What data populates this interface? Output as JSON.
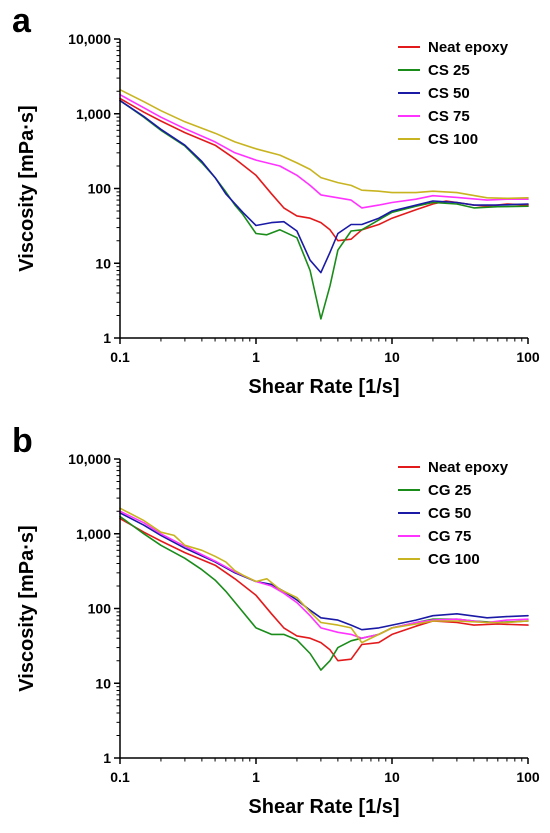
{
  "figure": {
    "panels": [
      {
        "letter": "a"
      },
      {
        "letter": "b"
      }
    ]
  },
  "chart_data": [
    {
      "type": "line",
      "panel": "a",
      "xlabel": "Shear Rate [1/s]",
      "ylabel": "Viscosity [mPa·s]",
      "xscale": "log",
      "yscale": "log",
      "xlim": [
        0.1,
        100
      ],
      "ylim": [
        1,
        10000
      ],
      "x_tick_labels": [
        "0.1",
        "1",
        "10",
        "100"
      ],
      "y_tick_labels": [
        "1",
        "10",
        "100",
        "1,000",
        "10,000"
      ],
      "grid": false,
      "legend_position": "top-right",
      "series": [
        {
          "name": "Neat epoxy",
          "color": "#e31a1c",
          "x": [
            0.1,
            0.15,
            0.2,
            0.3,
            0.5,
            0.7,
            1,
            1.3,
            1.6,
            2,
            2.5,
            3,
            3.5,
            4,
            5,
            6,
            8,
            10,
            15,
            20,
            25,
            30,
            40,
            50,
            70,
            100
          ],
          "y": [
            1600,
            1050,
            800,
            560,
            380,
            250,
            150,
            85,
            55,
            43,
            40,
            35,
            28,
            20,
            21,
            28,
            33,
            40,
            52,
            62,
            68,
            65,
            60,
            58,
            62,
            60
          ]
        },
        {
          "name": "CS 25",
          "color": "#1a8c1a",
          "x": [
            0.1,
            0.15,
            0.2,
            0.3,
            0.4,
            0.5,
            0.6,
            0.7,
            0.8,
            1,
            1.2,
            1.5,
            2,
            2.5,
            3,
            3.5,
            4,
            5,
            6,
            8,
            10,
            15,
            20,
            30,
            40,
            60,
            100
          ],
          "y": [
            1500,
            900,
            600,
            370,
            220,
            140,
            90,
            60,
            45,
            25,
            24,
            28,
            22,
            8,
            1.8,
            5,
            15,
            27,
            28,
            38,
            48,
            58,
            65,
            62,
            55,
            57,
            58
          ]
        },
        {
          "name": "CS 50",
          "color": "#1a1aa6",
          "x": [
            0.1,
            0.15,
            0.2,
            0.3,
            0.4,
            0.5,
            0.6,
            0.8,
            1,
            1.3,
            1.6,
            2,
            2.5,
            3,
            3.5,
            4,
            5,
            6,
            8,
            10,
            15,
            20,
            30,
            40,
            60,
            100
          ],
          "y": [
            1500,
            920,
            620,
            380,
            230,
            140,
            85,
            48,
            32,
            35,
            36,
            27,
            11,
            7.5,
            14,
            25,
            33,
            33,
            40,
            50,
            60,
            68,
            65,
            60,
            60,
            62
          ]
        },
        {
          "name": "CS 75",
          "color": "#ff33ff",
          "x": [
            0.1,
            0.15,
            0.2,
            0.3,
            0.5,
            0.7,
            1,
            1.5,
            2,
            2.5,
            3,
            4,
            5,
            6,
            8,
            10,
            15,
            20,
            30,
            50,
            70,
            100
          ],
          "y": [
            1800,
            1200,
            900,
            630,
            420,
            300,
            240,
            200,
            150,
            110,
            82,
            75,
            70,
            55,
            60,
            65,
            72,
            80,
            76,
            70,
            72,
            72
          ]
        },
        {
          "name": "CS 100",
          "color": "#c8b420",
          "x": [
            0.1,
            0.15,
            0.2,
            0.3,
            0.5,
            0.7,
            1,
            1.5,
            2,
            2.5,
            3,
            4,
            5,
            6,
            8,
            10,
            15,
            20,
            30,
            50,
            70,
            100
          ],
          "y": [
            2100,
            1450,
            1100,
            780,
            550,
            420,
            340,
            280,
            220,
            180,
            140,
            120,
            110,
            95,
            92,
            88,
            88,
            92,
            88,
            75,
            74,
            75
          ]
        }
      ]
    },
    {
      "type": "line",
      "panel": "b",
      "xlabel": "Shear Rate [1/s]",
      "ylabel": "Viscosity [mPa·s]",
      "xscale": "log",
      "yscale": "log",
      "xlim": [
        0.1,
        100
      ],
      "ylim": [
        1,
        10000
      ],
      "x_tick_labels": [
        "0.1",
        "1",
        "10",
        "100"
      ],
      "y_tick_labels": [
        "1",
        "10",
        "100",
        "1,000",
        "10,000"
      ],
      "grid": false,
      "legend_position": "top-right",
      "series": [
        {
          "name": "Neat epoxy",
          "color": "#e31a1c",
          "x": [
            0.1,
            0.15,
            0.2,
            0.3,
            0.5,
            0.7,
            1,
            1.3,
            1.6,
            2,
            2.5,
            3,
            3.5,
            4,
            5,
            6,
            8,
            10,
            15,
            20,
            30,
            40,
            60,
            100
          ],
          "y": [
            1600,
            1050,
            800,
            560,
            380,
            250,
            150,
            85,
            55,
            43,
            40,
            35,
            28,
            20,
            21,
            33,
            35,
            45,
            58,
            68,
            65,
            60,
            62,
            60
          ]
        },
        {
          "name": "CG 25",
          "color": "#1a8c1a",
          "x": [
            0.1,
            0.15,
            0.2,
            0.3,
            0.4,
            0.5,
            0.6,
            0.8,
            1,
            1.3,
            1.6,
            2,
            2.5,
            3,
            3.5,
            4,
            5,
            6,
            8,
            10,
            15,
            20,
            30,
            40,
            60,
            100
          ],
          "y": [
            1700,
            1000,
            700,
            470,
            330,
            240,
            170,
            90,
            55,
            45,
            45,
            38,
            25,
            15,
            20,
            30,
            37,
            40,
            45,
            55,
            65,
            72,
            72,
            68,
            65,
            68
          ]
        },
        {
          "name": "CG 50",
          "color": "#1a1aa6",
          "x": [
            0.1,
            0.15,
            0.2,
            0.3,
            0.5,
            0.7,
            1,
            1.3,
            1.6,
            2,
            2.5,
            3,
            4,
            5,
            6,
            8,
            10,
            15,
            20,
            30,
            50,
            70,
            100
          ],
          "y": [
            1900,
            1300,
            950,
            640,
            420,
            300,
            230,
            210,
            170,
            130,
            95,
            75,
            70,
            60,
            52,
            55,
            60,
            70,
            80,
            85,
            75,
            78,
            80
          ]
        },
        {
          "name": "CG 75",
          "color": "#ff33ff",
          "x": [
            0.1,
            0.15,
            0.2,
            0.3,
            0.5,
            0.7,
            1,
            1.3,
            1.6,
            2,
            2.5,
            3,
            4,
            5,
            6,
            8,
            10,
            15,
            20,
            30,
            50,
            70,
            100
          ],
          "y": [
            2000,
            1400,
            1000,
            680,
            430,
            310,
            230,
            200,
            160,
            120,
            80,
            55,
            48,
            45,
            40,
            45,
            55,
            65,
            70,
            72,
            65,
            70,
            72
          ]
        },
        {
          "name": "CG 100",
          "color": "#c8b420",
          "x": [
            0.1,
            0.15,
            0.2,
            0.25,
            0.3,
            0.4,
            0.5,
            0.6,
            0.7,
            0.8,
            1,
            1.2,
            1.5,
            2,
            2.5,
            3,
            4,
            5,
            6,
            8,
            10,
            15,
            20,
            30,
            50,
            70,
            100
          ],
          "y": [
            2200,
            1500,
            1050,
            950,
            700,
            600,
            500,
            420,
            320,
            280,
            230,
            250,
            180,
            140,
            90,
            65,
            60,
            55,
            35,
            45,
            55,
            62,
            68,
            68,
            65,
            65,
            68
          ]
        }
      ]
    }
  ]
}
